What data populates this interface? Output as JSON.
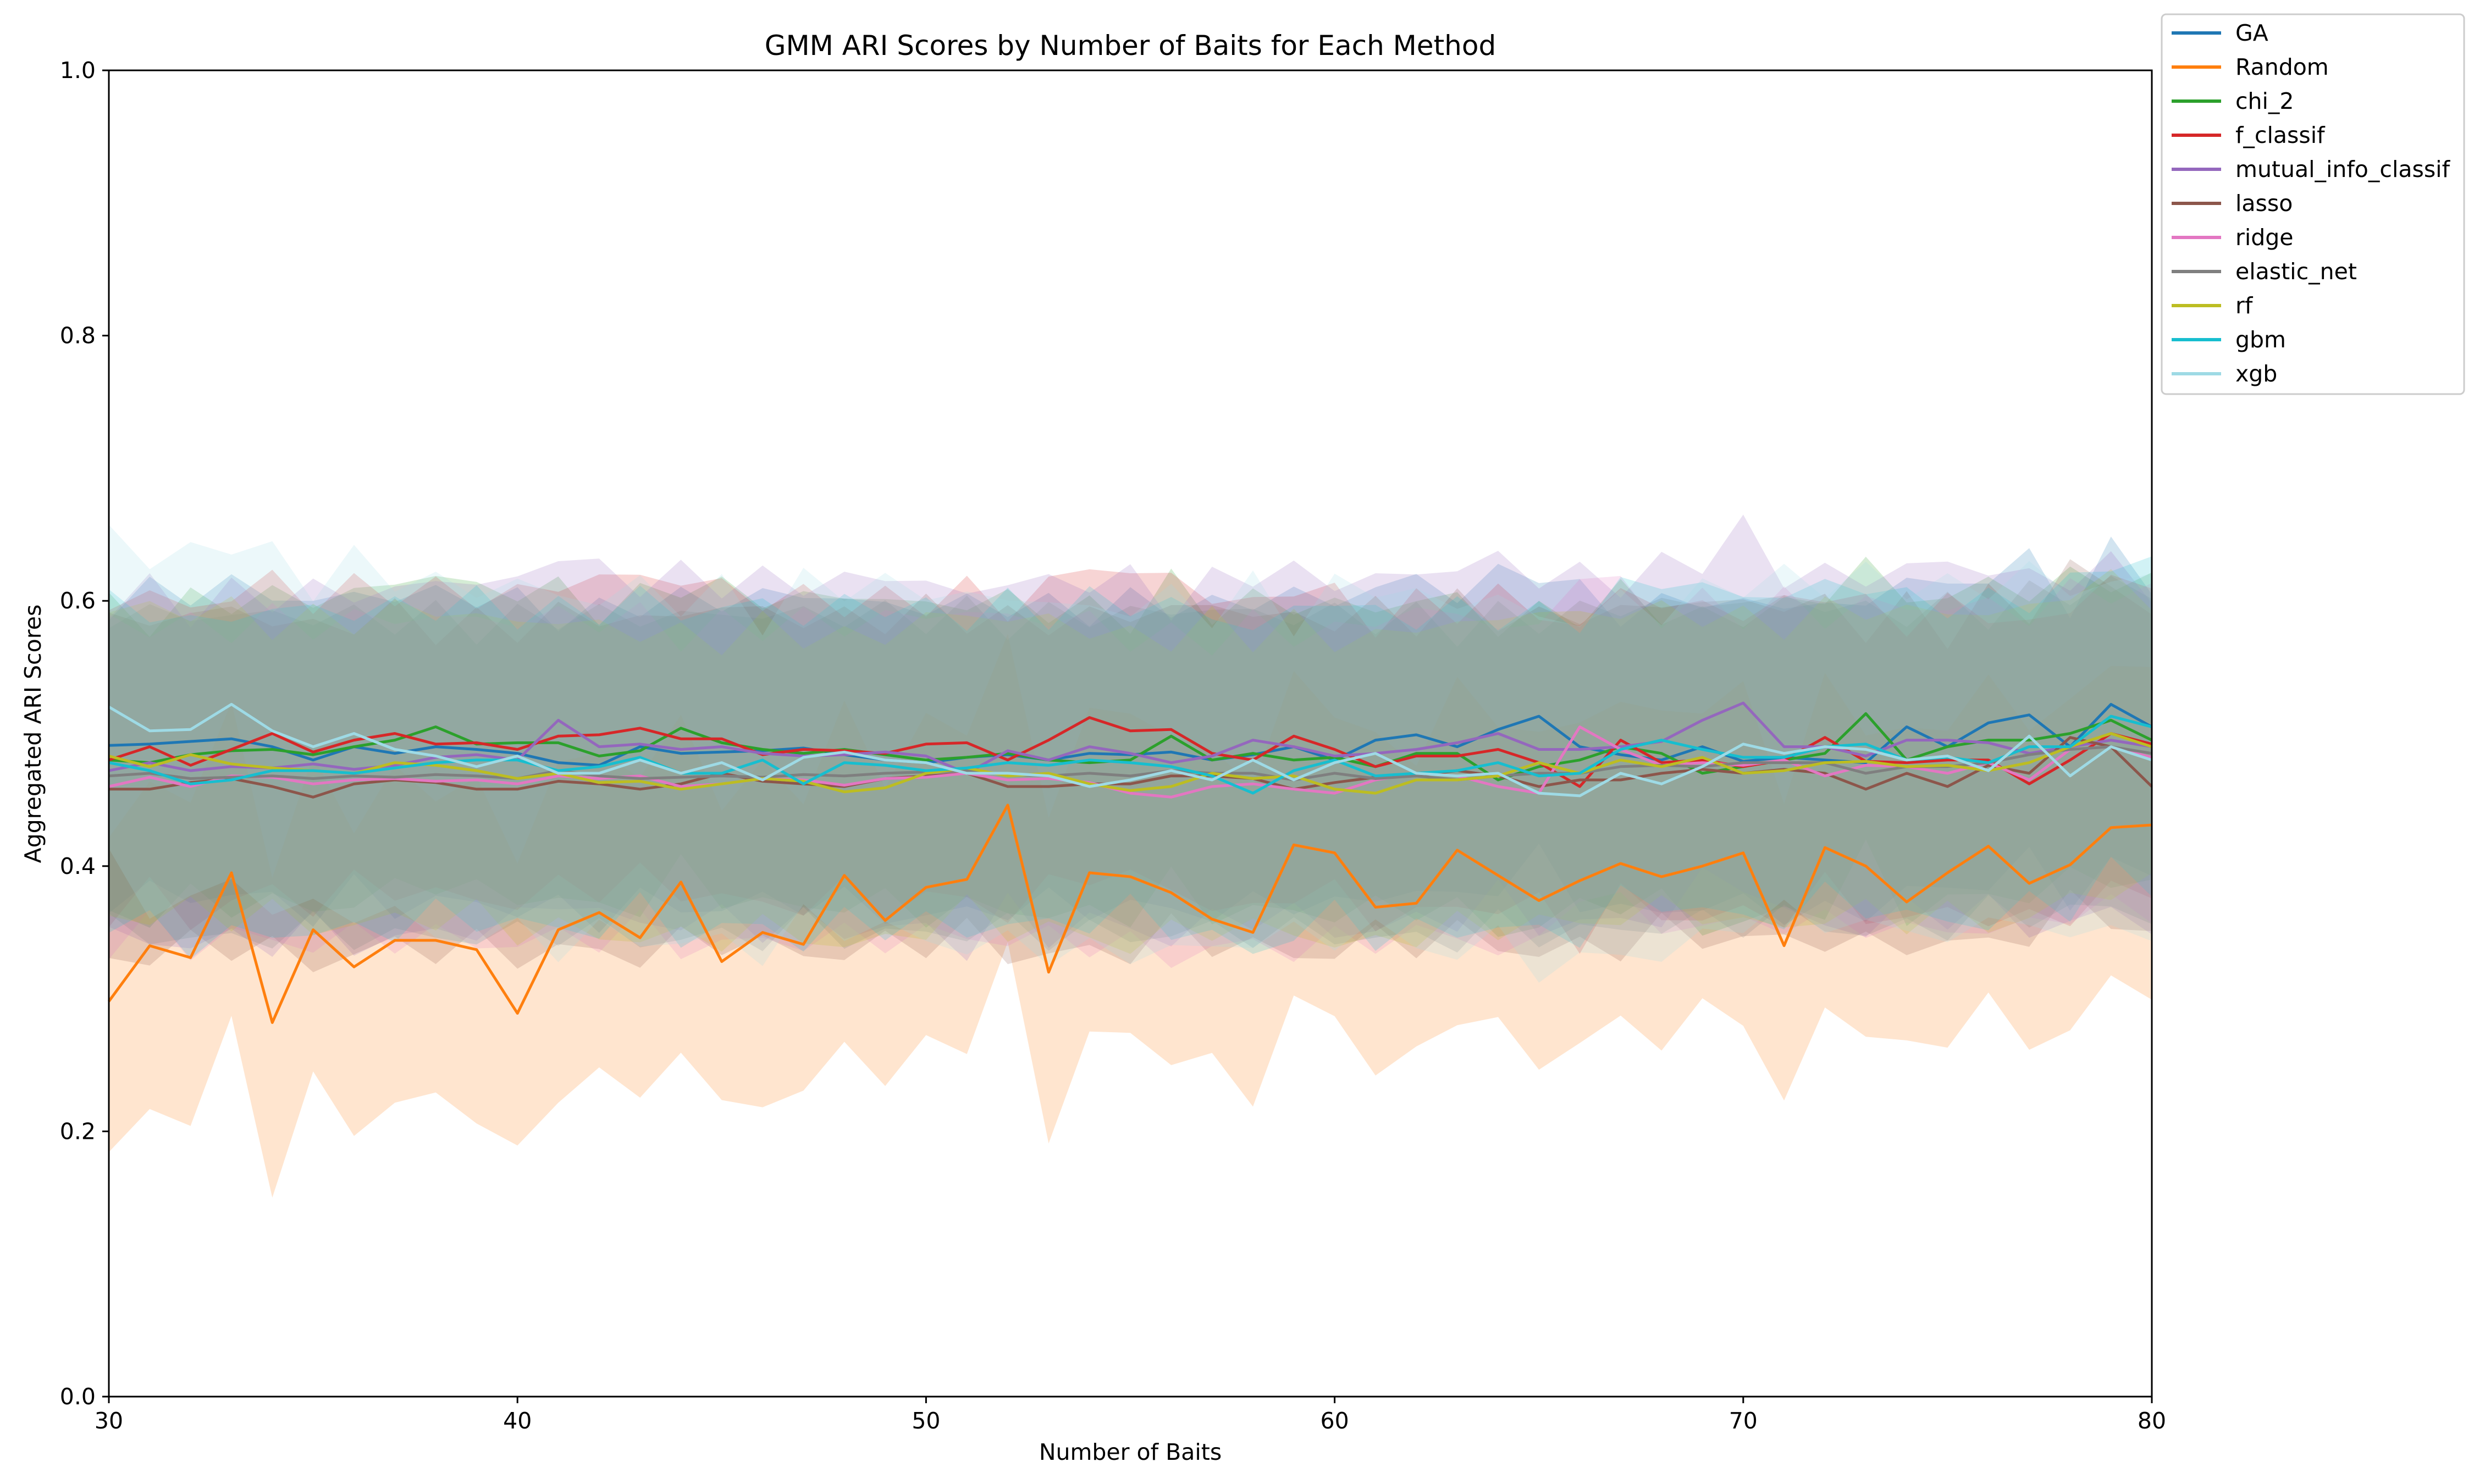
{
  "chart_data": {
    "type": "line",
    "title": "GMM ARI Scores by Number of Baits for Each Method",
    "xlabel": "Number of Baits",
    "ylabel": "Aggregated ARI Scores",
    "xlim": [
      30,
      80
    ],
    "ylim": [
      0,
      1
    ],
    "xticks": [
      30,
      40,
      50,
      60,
      70,
      80
    ],
    "yticks": [
      0.0,
      0.2,
      0.4,
      0.6,
      0.8,
      1.0
    ],
    "ytick_labels": [
      "0.0",
      "0.2",
      "0.4",
      "0.6",
      "0.8",
      "1.0"
    ],
    "grid": false,
    "legend_position": "outside top-right",
    "x": [
      30,
      31,
      32,
      33,
      34,
      35,
      36,
      37,
      38,
      39,
      40,
      41,
      42,
      43,
      44,
      45,
      46,
      47,
      48,
      49,
      50,
      51,
      52,
      53,
      54,
      55,
      56,
      57,
      58,
      59,
      60,
      61,
      62,
      63,
      64,
      65,
      66,
      67,
      68,
      69,
      70,
      71,
      72,
      73,
      74,
      75,
      76,
      77,
      78,
      79,
      80
    ],
    "series": [
      {
        "name": "GA",
        "color": "#1f77b4",
        "band": 0.115,
        "values": [
          0.491,
          0.492,
          0.494,
          0.496,
          0.49,
          0.48,
          0.49,
          0.485,
          0.49,
          0.488,
          0.485,
          0.478,
          0.476,
          0.49,
          0.485,
          0.486,
          0.487,
          0.489,
          0.484,
          0.48,
          0.478,
          0.482,
          0.484,
          0.48,
          0.485,
          0.484,
          0.486,
          0.48,
          0.484,
          0.49,
          0.48,
          0.495,
          0.499,
          0.49,
          0.503,
          0.513,
          0.49,
          0.484,
          0.48,
          0.49,
          0.479,
          0.482,
          0.48,
          0.478,
          0.505,
          0.49,
          0.508,
          0.514,
          0.49,
          0.522,
          0.505
        ]
      },
      {
        "name": "Random",
        "color": "#ff7f0e",
        "band": 0.12,
        "values": [
          0.298,
          0.34,
          0.331,
          0.395,
          0.282,
          0.352,
          0.324,
          0.344,
          0.344,
          0.337,
          0.289,
          0.352,
          0.365,
          0.346,
          0.388,
          0.328,
          0.35,
          0.341,
          0.393,
          0.359,
          0.384,
          0.39,
          0.446,
          0.32,
          0.395,
          0.392,
          0.38,
          0.36,
          0.35,
          0.416,
          0.41,
          0.369,
          0.372,
          0.412,
          0.393,
          0.374,
          0.389,
          0.402,
          0.392,
          0.4,
          0.41,
          0.34,
          0.414,
          0.4,
          0.373,
          0.395,
          0.415,
          0.387,
          0.401,
          0.429,
          0.431
        ]
      },
      {
        "name": "chi_2",
        "color": "#2ca02c",
        "band": 0.115,
        "values": [
          0.48,
          0.478,
          0.484,
          0.487,
          0.488,
          0.484,
          0.49,
          0.495,
          0.505,
          0.492,
          0.493,
          0.493,
          0.483,
          0.487,
          0.504,
          0.493,
          0.488,
          0.485,
          0.488,
          0.484,
          0.48,
          0.482,
          0.485,
          0.48,
          0.478,
          0.48,
          0.498,
          0.48,
          0.485,
          0.48,
          0.482,
          0.475,
          0.485,
          0.485,
          0.465,
          0.475,
          0.48,
          0.49,
          0.485,
          0.47,
          0.475,
          0.48,
          0.485,
          0.515,
          0.48,
          0.49,
          0.495,
          0.495,
          0.5,
          0.51,
          0.495
        ]
      },
      {
        "name": "f_classif",
        "color": "#d62728",
        "band": 0.115,
        "values": [
          0.48,
          0.49,
          0.476,
          0.488,
          0.5,
          0.486,
          0.495,
          0.5,
          0.492,
          0.493,
          0.488,
          0.498,
          0.499,
          0.504,
          0.496,
          0.496,
          0.484,
          0.488,
          0.487,
          0.485,
          0.492,
          0.493,
          0.48,
          0.495,
          0.512,
          0.502,
          0.503,
          0.485,
          0.48,
          0.498,
          0.488,
          0.475,
          0.483,
          0.483,
          0.488,
          0.478,
          0.46,
          0.495,
          0.478,
          0.48,
          0.475,
          0.48,
          0.497,
          0.479,
          0.478,
          0.48,
          0.48,
          0.462,
          0.48,
          0.5,
          0.492
        ]
      },
      {
        "name": "mutual_info_classif",
        "color": "#9467bd",
        "band": 0.13,
        "values": [
          0.472,
          0.478,
          0.472,
          0.475,
          0.474,
          0.477,
          0.473,
          0.476,
          0.482,
          0.484,
          0.48,
          0.51,
          0.49,
          0.492,
          0.488,
          0.49,
          0.485,
          0.483,
          0.484,
          0.486,
          0.483,
          0.47,
          0.487,
          0.48,
          0.49,
          0.485,
          0.478,
          0.483,
          0.495,
          0.49,
          0.483,
          0.485,
          0.488,
          0.493,
          0.5,
          0.488,
          0.488,
          0.49,
          0.494,
          0.51,
          0.523,
          0.49,
          0.49,
          0.483,
          0.495,
          0.495,
          0.493,
          0.485,
          0.49,
          0.495,
          0.49
        ]
      },
      {
        "name": "lasso",
        "color": "#8c564b",
        "band": 0.125,
        "values": [
          0.458,
          0.458,
          0.463,
          0.466,
          0.46,
          0.452,
          0.462,
          0.465,
          0.463,
          0.458,
          0.458,
          0.464,
          0.462,
          0.458,
          0.462,
          0.47,
          0.464,
          0.462,
          0.46,
          0.466,
          0.468,
          0.47,
          0.46,
          0.46,
          0.462,
          0.462,
          0.468,
          0.468,
          0.466,
          0.458,
          0.463,
          0.467,
          0.468,
          0.472,
          0.468,
          0.46,
          0.465,
          0.465,
          0.47,
          0.473,
          0.47,
          0.473,
          0.47,
          0.458,
          0.47,
          0.46,
          0.476,
          0.47,
          0.497,
          0.49,
          0.46
        ]
      },
      {
        "name": "ridge",
        "color": "#e377c2",
        "band": 0.12,
        "values": [
          0.46,
          0.467,
          0.46,
          0.468,
          0.467,
          0.462,
          0.465,
          0.466,
          0.464,
          0.465,
          0.462,
          0.468,
          0.466,
          0.468,
          0.46,
          0.462,
          0.466,
          0.465,
          0.461,
          0.466,
          0.467,
          0.47,
          0.465,
          0.466,
          0.463,
          0.455,
          0.452,
          0.46,
          0.462,
          0.458,
          0.455,
          0.465,
          0.47,
          0.468,
          0.46,
          0.455,
          0.505,
          0.488,
          0.476,
          0.478,
          0.476,
          0.48,
          0.468,
          0.476,
          0.475,
          0.47,
          0.478,
          0.465,
          0.488,
          0.49,
          0.482
        ]
      },
      {
        "name": "elastic_net",
        "color": "#7f7f7f",
        "band": 0.12,
        "values": [
          0.468,
          0.47,
          0.466,
          0.467,
          0.468,
          0.466,
          0.468,
          0.467,
          0.469,
          0.468,
          0.466,
          0.472,
          0.468,
          0.466,
          0.467,
          0.468,
          0.467,
          0.469,
          0.468,
          0.47,
          0.471,
          0.472,
          0.469,
          0.468,
          0.47,
          0.468,
          0.472,
          0.47,
          0.47,
          0.465,
          0.47,
          0.466,
          0.468,
          0.465,
          0.468,
          0.47,
          0.47,
          0.475,
          0.476,
          0.475,
          0.478,
          0.478,
          0.478,
          0.47,
          0.475,
          0.475,
          0.478,
          0.484,
          0.488,
          0.49,
          0.485
        ]
      },
      {
        "name": "rf",
        "color": "#bcbd22",
        "band": 0.115,
        "values": [
          0.483,
          0.475,
          0.484,
          0.477,
          0.474,
          0.472,
          0.47,
          0.478,
          0.476,
          0.472,
          0.466,
          0.47,
          0.463,
          0.464,
          0.458,
          0.462,
          0.466,
          0.464,
          0.456,
          0.459,
          0.47,
          0.474,
          0.468,
          0.47,
          0.462,
          0.457,
          0.46,
          0.47,
          0.466,
          0.468,
          0.458,
          0.455,
          0.465,
          0.465,
          0.468,
          0.478,
          0.47,
          0.48,
          0.475,
          0.482,
          0.47,
          0.472,
          0.478,
          0.479,
          0.475,
          0.476,
          0.472,
          0.478,
          0.49,
          0.5,
          0.49
        ]
      },
      {
        "name": "gbm",
        "color": "#17becf",
        "band": 0.12,
        "values": [
          0.478,
          0.472,
          0.462,
          0.465,
          0.472,
          0.472,
          0.47,
          0.474,
          0.478,
          0.48,
          0.48,
          0.472,
          0.475,
          0.482,
          0.47,
          0.47,
          0.48,
          0.462,
          0.478,
          0.476,
          0.472,
          0.474,
          0.478,
          0.476,
          0.48,
          0.478,
          0.475,
          0.468,
          0.455,
          0.472,
          0.48,
          0.468,
          0.47,
          0.472,
          0.478,
          0.468,
          0.47,
          0.488,
          0.495,
          0.488,
          0.482,
          0.482,
          0.49,
          0.492,
          0.48,
          0.482,
          0.478,
          0.49,
          0.49,
          0.513,
          0.505
        ]
      },
      {
        "name": "xgb",
        "color": "#9edae5",
        "band": 0.13,
        "values": [
          0.52,
          0.502,
          0.503,
          0.522,
          0.502,
          0.49,
          0.5,
          0.488,
          0.483,
          0.475,
          0.483,
          0.47,
          0.47,
          0.48,
          0.47,
          0.478,
          0.465,
          0.482,
          0.486,
          0.48,
          0.478,
          0.47,
          0.47,
          0.468,
          0.46,
          0.465,
          0.472,
          0.465,
          0.48,
          0.465,
          0.478,
          0.485,
          0.47,
          0.468,
          0.47,
          0.455,
          0.453,
          0.47,
          0.462,
          0.475,
          0.492,
          0.485,
          0.49,
          0.488,
          0.48,
          0.483,
          0.472,
          0.498,
          0.468,
          0.49,
          0.48
        ]
      }
    ]
  }
}
